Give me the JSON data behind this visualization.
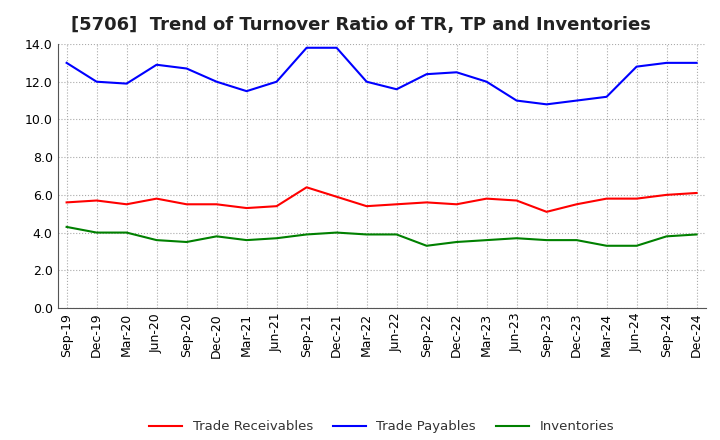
{
  "title": "[5706]  Trend of Turnover Ratio of TR, TP and Inventories",
  "x_labels": [
    "Sep-19",
    "Dec-19",
    "Mar-20",
    "Jun-20",
    "Sep-20",
    "Dec-20",
    "Mar-21",
    "Jun-21",
    "Sep-21",
    "Dec-21",
    "Mar-22",
    "Jun-22",
    "Sep-22",
    "Dec-22",
    "Mar-23",
    "Jun-23",
    "Sep-23",
    "Dec-23",
    "Mar-24",
    "Jun-24",
    "Sep-24",
    "Dec-24"
  ],
  "trade_receivables": [
    5.6,
    5.7,
    5.5,
    5.8,
    5.5,
    5.5,
    5.3,
    5.4,
    6.4,
    5.9,
    5.4,
    5.5,
    5.6,
    5.5,
    5.8,
    5.7,
    5.1,
    5.5,
    5.8,
    5.8,
    6.0,
    6.1
  ],
  "trade_payables": [
    13.0,
    12.0,
    11.9,
    12.9,
    12.7,
    12.0,
    11.5,
    12.0,
    13.8,
    13.8,
    12.0,
    11.6,
    12.4,
    12.5,
    12.0,
    11.0,
    10.8,
    11.0,
    11.2,
    12.8,
    13.0,
    13.0
  ],
  "inventories": [
    4.3,
    4.0,
    4.0,
    3.6,
    3.5,
    3.8,
    3.6,
    3.7,
    3.9,
    4.0,
    3.9,
    3.9,
    3.3,
    3.5,
    3.6,
    3.7,
    3.6,
    3.6,
    3.3,
    3.3,
    3.8,
    3.9
  ],
  "tr_color": "#ff0000",
  "tp_color": "#0000ff",
  "inv_color": "#008000",
  "ylim": [
    0,
    14.0
  ],
  "yticks": [
    0.0,
    2.0,
    4.0,
    6.0,
    8.0,
    10.0,
    12.0,
    14.0
  ],
  "grid_color": "#aaaaaa",
  "background_color": "#ffffff",
  "plot_bg_color": "#ffffff",
  "legend_labels": [
    "Trade Receivables",
    "Trade Payables",
    "Inventories"
  ],
  "title_fontsize": 13,
  "label_fontsize": 9.5,
  "tick_fontsize": 9
}
